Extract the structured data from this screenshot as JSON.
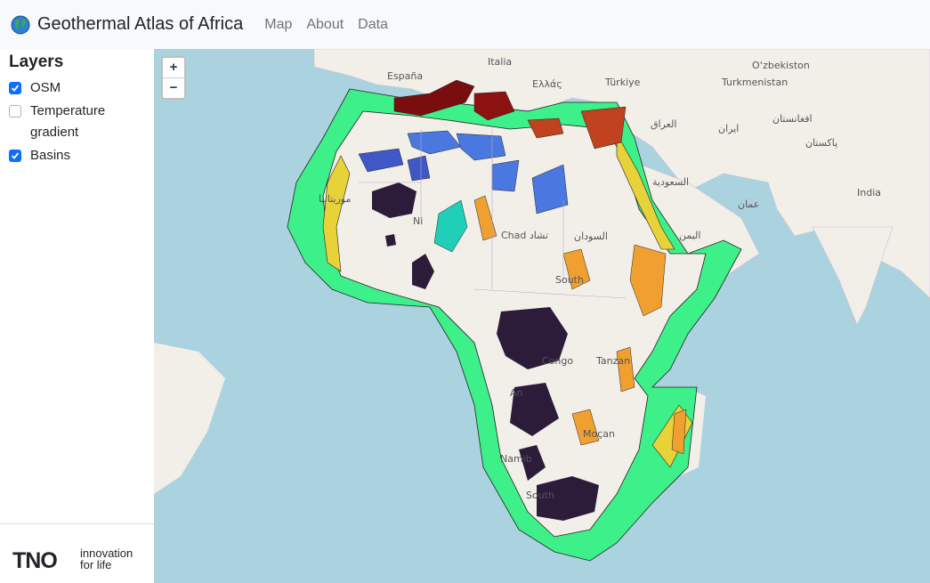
{
  "navbar": {
    "title": "Geothermal Atlas of Africa",
    "links": [
      "Map",
      "About",
      "Data"
    ]
  },
  "sidebar": {
    "heading": "Layers",
    "layers": [
      {
        "label": "OSM",
        "checked": true
      },
      {
        "label": "Temperature gradient",
        "checked": false
      },
      {
        "label": "Basins",
        "checked": true
      }
    ]
  },
  "footer": {
    "logo": "TNO",
    "tagline_1": "innovation",
    "tagline_2": "for life"
  },
  "map": {
    "zoom_in": "+",
    "zoom_out": "−",
    "labels": {
      "italia": "Italia",
      "espana": "España",
      "ellas": "Ελλάς",
      "turkiye": "Türkiye",
      "turkmenistan": "Turkmenistan",
      "uzbekistan": "O‘zbekiston",
      "afghanistan": "افغانستان",
      "iraq": "العراق",
      "iran": "ایران",
      "pakistan": "پاکستان",
      "saudi": "السعودية",
      "oman": "عمان",
      "india": "India",
      "yemen": "اليمن",
      "mauritania": "موريتانيا",
      "chad": "Chad تشاد",
      "sudan": "السودان",
      "south_sudan": "South",
      "congo": "Congo",
      "tanzania": "Tanzan",
      "angola": "An",
      "mozambique": "Moçan",
      "namibia": "Namib",
      "south_africa": "South",
      "niger": "Ni"
    }
  },
  "colors": {
    "ocean": "#aad3df",
    "land": "#f2efe9",
    "accent": "#0d6efd"
  }
}
